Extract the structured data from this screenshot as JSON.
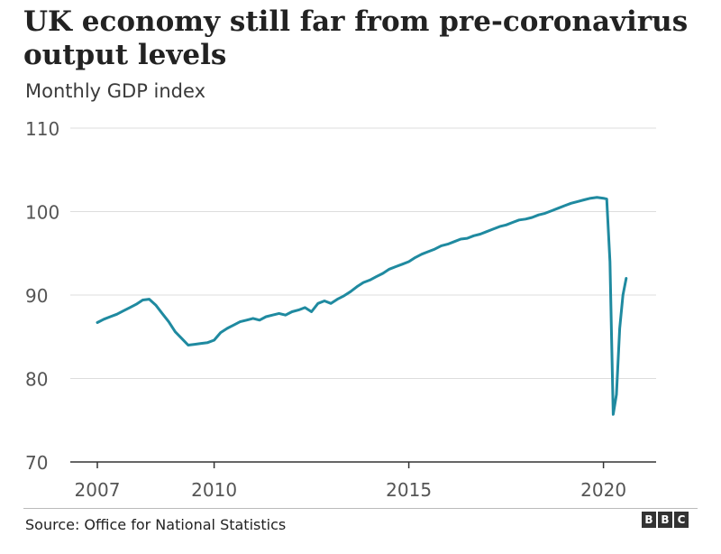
{
  "chart_data": {
    "type": "line",
    "title": "UK economy still far from pre-coronavirus output levels",
    "subtitle": "Monthly GDP index",
    "xlabel": "",
    "ylabel": "",
    "ylim": [
      70,
      110
    ],
    "yticks": [
      70,
      80,
      90,
      100,
      110
    ],
    "xticks": [
      "2007",
      "2010",
      "2015",
      "2020"
    ],
    "grid": true,
    "color": "#1f8aa0",
    "series": [
      {
        "x": [
          "2007-01",
          "2007-03",
          "2007-05",
          "2007-07",
          "2007-09",
          "2007-11",
          "2008-01",
          "2008-03",
          "2008-05",
          "2008-07",
          "2008-09",
          "2008-11",
          "2009-01",
          "2009-03",
          "2009-05",
          "2009-07",
          "2009-09",
          "2009-11",
          "2010-01",
          "2010-03",
          "2010-05",
          "2010-07",
          "2010-09",
          "2010-11",
          "2011-01",
          "2011-03",
          "2011-05",
          "2011-07",
          "2011-09",
          "2011-11",
          "2012-01",
          "2012-03",
          "2012-05",
          "2012-07",
          "2012-09",
          "2012-11",
          "2013-01",
          "2013-03",
          "2013-05",
          "2013-07",
          "2013-09",
          "2013-11",
          "2014-01",
          "2014-03",
          "2014-05",
          "2014-07",
          "2014-09",
          "2014-11",
          "2015-01",
          "2015-03",
          "2015-05",
          "2015-07",
          "2015-09",
          "2015-11",
          "2016-01",
          "2016-03",
          "2016-05",
          "2016-07",
          "2016-09",
          "2016-11",
          "2017-01",
          "2017-03",
          "2017-05",
          "2017-07",
          "2017-09",
          "2017-11",
          "2018-01",
          "2018-03",
          "2018-05",
          "2018-07",
          "2018-09",
          "2018-11",
          "2019-01",
          "2019-03",
          "2019-05",
          "2019-07",
          "2019-09",
          "2019-11",
          "2020-01",
          "2020-02",
          "2020-03",
          "2020-04",
          "2020-05",
          "2020-06",
          "2020-07",
          "2020-08"
        ],
        "values": [
          86.7,
          87.1,
          87.4,
          87.7,
          88.1,
          88.5,
          88.9,
          89.4,
          89.5,
          88.8,
          87.8,
          86.8,
          85.6,
          84.8,
          84.0,
          84.1,
          84.2,
          84.3,
          84.6,
          85.5,
          86.0,
          86.4,
          86.8,
          87.0,
          87.2,
          87.0,
          87.4,
          87.6,
          87.8,
          87.6,
          88.0,
          88.2,
          88.5,
          88.0,
          89.0,
          89.3,
          89.0,
          89.5,
          89.9,
          90.4,
          91.0,
          91.5,
          91.8,
          92.2,
          92.6,
          93.1,
          93.4,
          93.7,
          94.0,
          94.5,
          94.9,
          95.2,
          95.5,
          95.9,
          96.1,
          96.4,
          96.7,
          96.8,
          97.1,
          97.3,
          97.6,
          97.9,
          98.2,
          98.4,
          98.7,
          99.0,
          99.1,
          99.3,
          99.6,
          99.8,
          100.1,
          100.4,
          100.7,
          101.0,
          101.2,
          101.4,
          101.6,
          101.7,
          101.6,
          101.5,
          94.0,
          75.7,
          78.1,
          86.0,
          90.0,
          92.0
        ]
      }
    ]
  },
  "source": "Source: Office for National Statistics",
  "logo": [
    "B",
    "B",
    "C"
  ]
}
